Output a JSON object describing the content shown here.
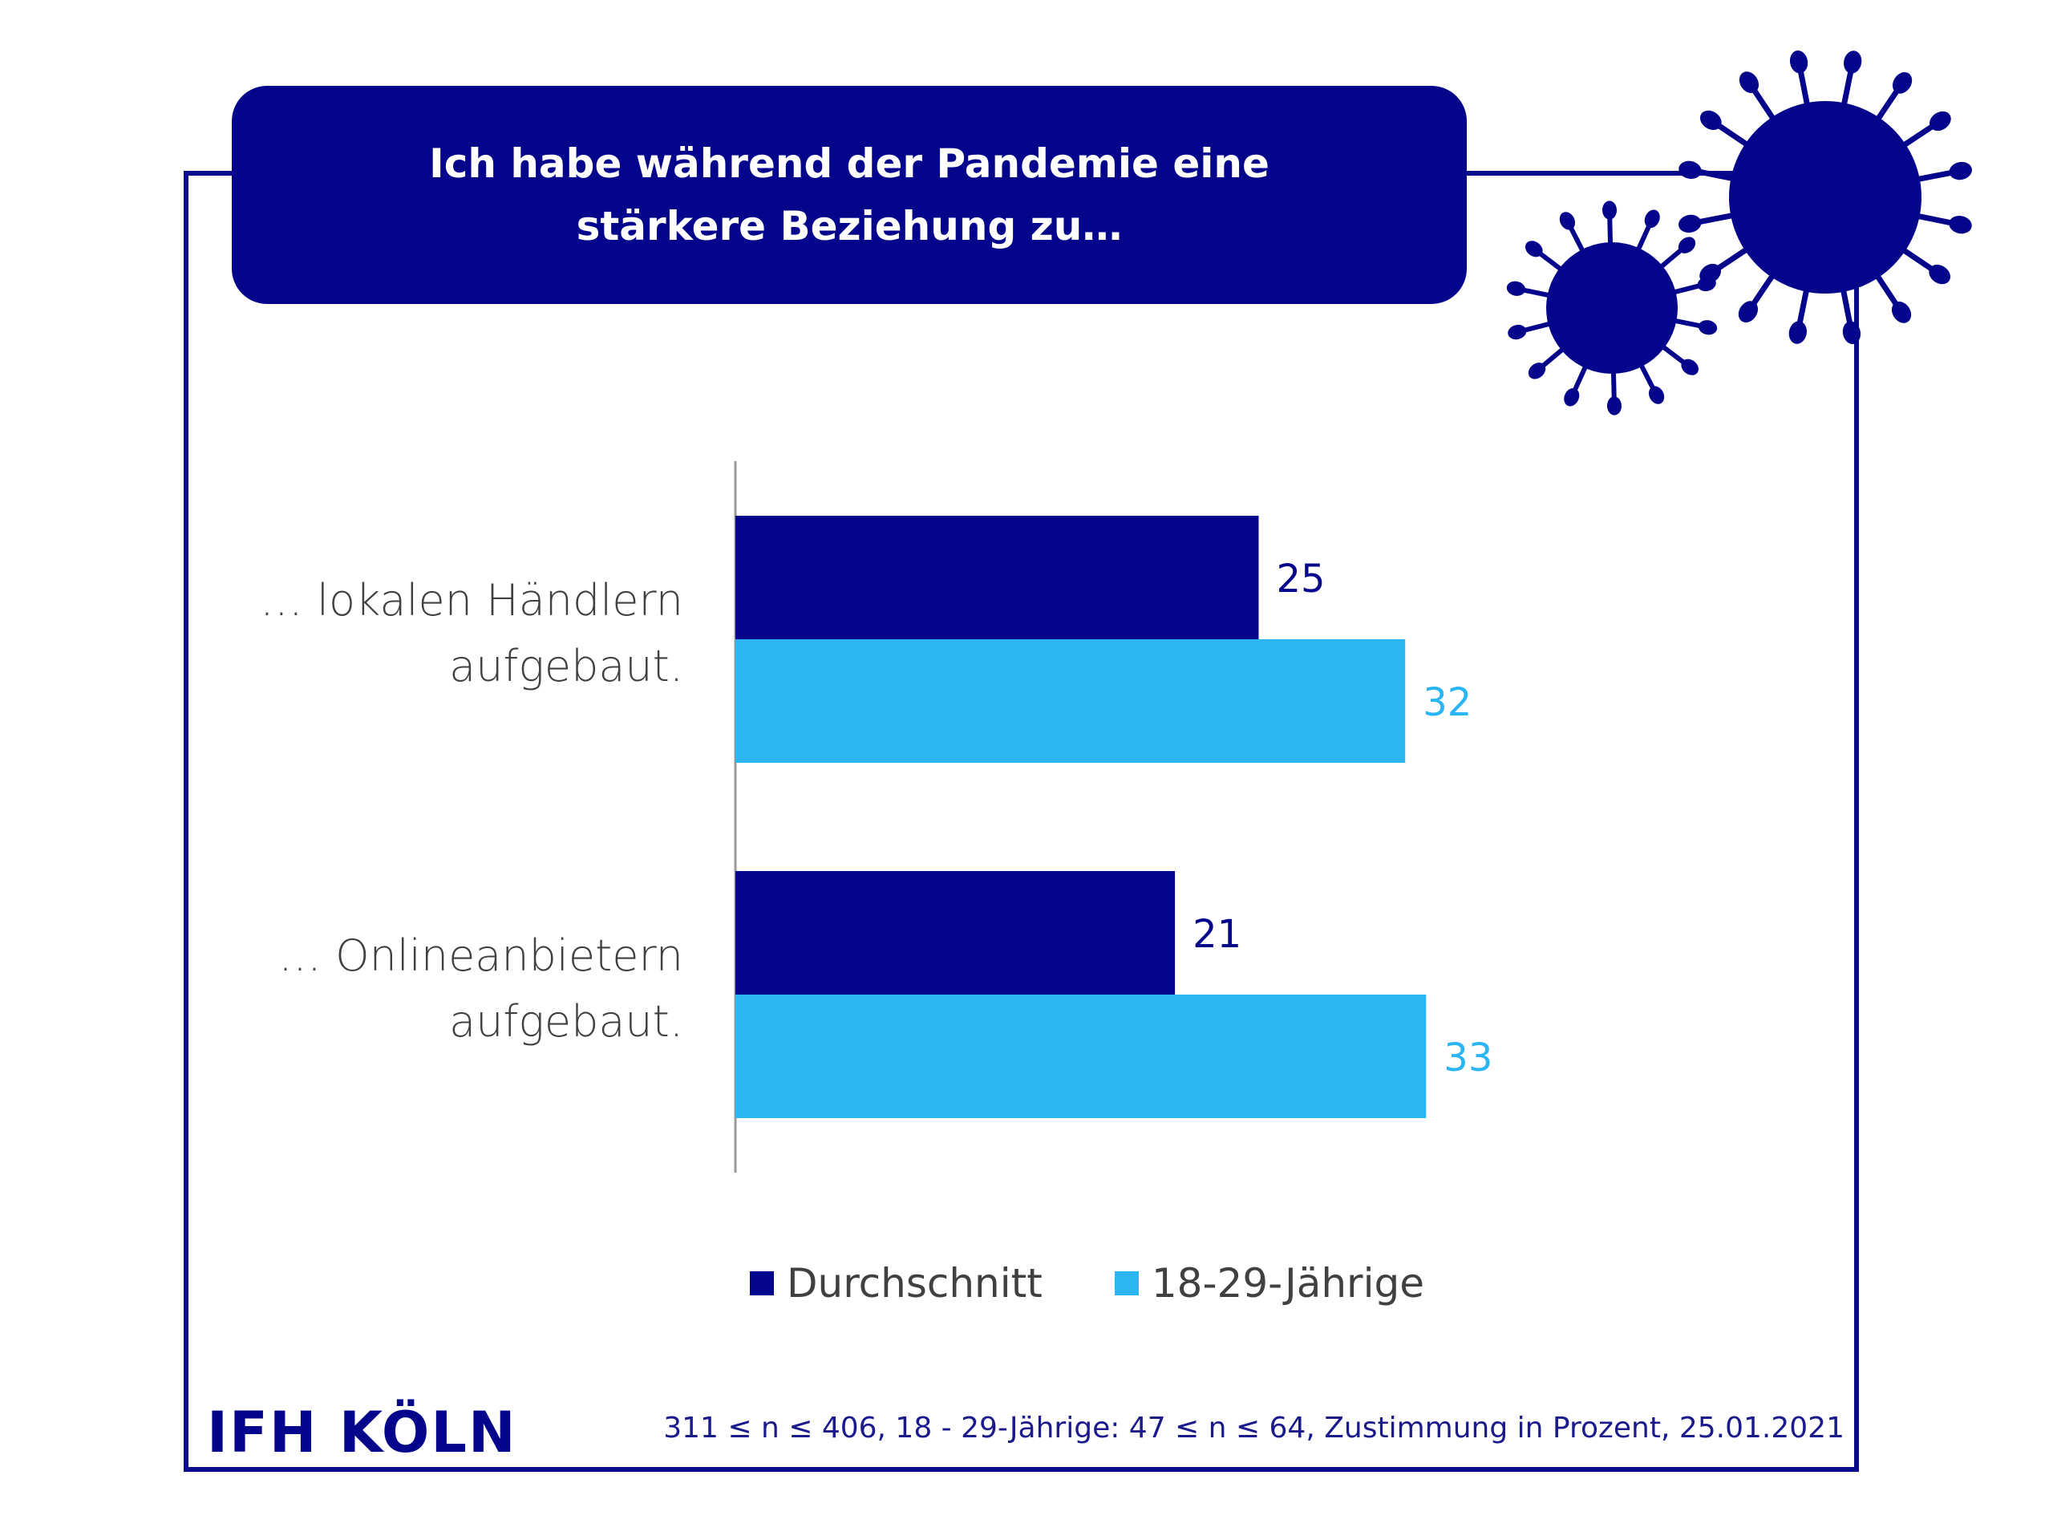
{
  "title": "Ich habe während der Pandemie eine stärkere Beziehung zu…",
  "colors": {
    "navy": "#05058c",
    "light_blue": "#2bb5f2",
    "frame": "#0a0a8c",
    "category_text": "#404040"
  },
  "decorations": {
    "virus_icon": "coronavirus-icon"
  },
  "chart_data": {
    "type": "bar",
    "orientation": "horizontal",
    "categories": [
      [
        "… lokalen Händlern",
        "aufgebaut."
      ],
      [
        "… Onlineanbietern",
        "aufgebaut."
      ]
    ],
    "series": [
      {
        "name": "Durchschnitt",
        "values": [
          25,
          21
        ],
        "color": "#05058c"
      },
      {
        "name": "18-29-Jährige",
        "values": [
          32,
          33
        ],
        "color": "#2bb5f2"
      }
    ],
    "xlim": [
      0,
      40
    ],
    "grid": false,
    "legend_position": "bottom"
  },
  "legend": [
    {
      "label": "Durchschnitt",
      "color": "#05058c"
    },
    {
      "label": "18-29-Jährige",
      "color": "#2bb5f2"
    }
  ],
  "footer": {
    "logo": "IFH KÖLN",
    "note": "311 ≤ n ≤ 406, 18 - 29-Jährige: 47 ≤ n ≤ 64, Zustimmung in Prozent, 25.01.2021"
  }
}
